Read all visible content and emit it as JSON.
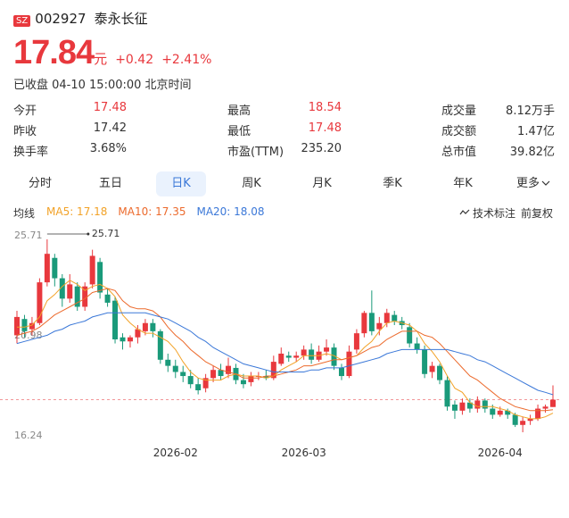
{
  "header": {
    "market": "SZ",
    "code": "002927",
    "name": "泰永长征",
    "price": "17.84",
    "unit": "元",
    "change": "+0.42",
    "change_pct": "+2.41%",
    "status": "已收盘 04-10 15:00:00 北京时间"
  },
  "stats": [
    [
      {
        "label": "今开",
        "value": "17.48",
        "color": "#e8383d"
      },
      {
        "label": "最高",
        "value": "18.54",
        "color": "#e8383d"
      },
      {
        "label": "成交量",
        "value": "8.12万手",
        "color": "#333333"
      }
    ],
    [
      {
        "label": "昨收",
        "value": "17.42",
        "color": "#333333"
      },
      {
        "label": "最低",
        "value": "17.48",
        "color": "#e8383d"
      },
      {
        "label": "成交额",
        "value": "1.47亿",
        "color": "#333333"
      }
    ],
    [
      {
        "label": "换手率",
        "value": "3.68%",
        "color": "#333333"
      },
      {
        "label": "市盈(TTM)",
        "value": "235.20",
        "color": "#333333"
      },
      {
        "label": "总市值",
        "value": "39.82亿",
        "color": "#333333"
      }
    ]
  ],
  "tabs": [
    "分时",
    "五日",
    "日K",
    "周K",
    "月K",
    "季K",
    "年K",
    "更多"
  ],
  "active_tab": 2,
  "legend": {
    "title": "均线",
    "tools": [
      "技术标注",
      "前复权"
    ]
  },
  "chart_data": {
    "type": "candlestick",
    "up_color": "#e8383d",
    "down_color": "#1a9a7a",
    "categories": [
      null,
      null,
      null,
      null,
      null,
      null,
      null,
      null,
      null,
      null,
      null,
      null,
      null,
      null,
      null,
      null,
      null,
      null,
      null,
      null,
      null,
      "2026-02",
      null,
      null,
      null,
      null,
      null,
      null,
      null,
      null,
      null,
      null,
      null,
      null,
      null,
      null,
      null,
      null,
      "2026-03",
      null,
      null,
      null,
      null,
      null,
      null,
      null,
      null,
      null,
      null,
      null,
      null,
      null,
      null,
      null,
      null,
      null,
      null,
      null,
      null,
      null,
      null,
      null,
      null,
      null,
      "2026-04",
      null,
      null,
      null,
      null,
      null,
      null,
      null
    ],
    "open": [
      21.0,
      21.8,
      21.3,
      21.6,
      23.6,
      24.8,
      23.8,
      22.8,
      23.4,
      22.4,
      23.5,
      24.6,
      23.0,
      22.7,
      20.9,
      20.7,
      20.9,
      21.2,
      21.6,
      21.2,
      19.8,
      19.5,
      19.2,
      19.0,
      18.6,
      18.4,
      18.9,
      19.3,
      19.1,
      19.4,
      18.8,
      18.7,
      19.0,
      19.0,
      18.9,
      19.6,
      20.0,
      19.9,
      20.0,
      20.3,
      19.8,
      20.2,
      20.4,
      19.4,
      19.0,
      20.3,
      21.1,
      22.1,
      21.3,
      21.6,
      22.0,
      21.7,
      21.4,
      20.6,
      20.3,
      19.2,
      19.5,
      18.8,
      17.6,
      17.3,
      17.7,
      17.4,
      17.8,
      17.4,
      17.1,
      17.3,
      17.1,
      16.6,
      16.8,
      16.9,
      17.4,
      17.48
    ],
    "close": [
      21.9,
      21.2,
      21.6,
      23.6,
      25.0,
      23.8,
      22.8,
      23.5,
      22.4,
      23.4,
      24.9,
      23.1,
      22.6,
      20.8,
      20.7,
      20.9,
      21.3,
      21.6,
      21.2,
      19.8,
      19.5,
      19.2,
      19.0,
      18.6,
      18.3,
      18.9,
      19.3,
      19.0,
      19.5,
      18.8,
      18.6,
      19.0,
      19.0,
      18.9,
      19.7,
      20.1,
      19.9,
      20.0,
      20.3,
      19.8,
      20.2,
      20.4,
      19.5,
      19.0,
      20.2,
      21.1,
      22.1,
      21.2,
      21.6,
      22.1,
      21.7,
      21.5,
      20.6,
      20.3,
      19.1,
      19.5,
      18.8,
      17.5,
      17.3,
      17.7,
      17.4,
      17.8,
      17.4,
      17.1,
      17.3,
      17.1,
      16.6,
      16.8,
      16.9,
      17.4,
      17.5,
      17.84
    ],
    "high": [
      22.2,
      22.0,
      21.9,
      23.8,
      25.71,
      25.0,
      24.0,
      24.0,
      23.6,
      23.6,
      25.2,
      24.8,
      23.3,
      22.9,
      21.1,
      21.0,
      21.5,
      21.8,
      21.8,
      21.3,
      20.1,
      19.8,
      19.5,
      19.3,
      18.9,
      19.1,
      19.5,
      19.6,
      19.9,
      19.6,
      19.1,
      19.2,
      19.2,
      19.3,
      20.0,
      20.4,
      20.2,
      20.2,
      20.5,
      20.6,
      20.5,
      20.8,
      20.6,
      19.6,
      20.5,
      21.3,
      22.2,
      23.2,
      21.9,
      22.3,
      22.2,
      21.9,
      21.6,
      20.9,
      20.5,
      19.7,
      19.6,
      19.0,
      17.8,
      17.9,
      17.9,
      18.0,
      17.9,
      17.6,
      17.5,
      17.4,
      17.2,
      17.0,
      17.1,
      17.6,
      17.6,
      18.54
    ],
    "low": [
      20.6,
      20.9,
      21.0,
      21.5,
      23.4,
      23.4,
      22.4,
      22.6,
      22.2,
      22.2,
      23.3,
      22.8,
      22.4,
      20.6,
      20.3,
      20.4,
      20.6,
      21.0,
      20.9,
      19.6,
      19.2,
      18.9,
      18.7,
      18.4,
      18.1,
      18.2,
      18.7,
      18.8,
      18.9,
      18.6,
      18.4,
      18.5,
      18.8,
      18.8,
      18.8,
      19.5,
      19.7,
      19.7,
      19.8,
      19.6,
      19.7,
      20.0,
      19.3,
      18.8,
      18.9,
      20.1,
      20.9,
      21.0,
      21.0,
      21.4,
      21.5,
      21.3,
      20.4,
      20.1,
      18.9,
      18.9,
      18.6,
      17.3,
      16.9,
      17.1,
      17.2,
      17.2,
      17.2,
      16.9,
      17.0,
      16.9,
      16.5,
      16.24,
      16.6,
      16.8,
      17.2,
      17.48
    ],
    "series": [
      {
        "name": "MA5",
        "legend_label": "MA5: 17.18",
        "color": "#f2a227",
        "values": [
          21.4,
          21.4,
          21.5,
          21.9,
          22.7,
          23.0,
          23.4,
          23.7,
          23.5,
          23.2,
          23.4,
          23.5,
          23.3,
          22.9,
          22.0,
          21.6,
          21.3,
          21.1,
          21.1,
          20.9,
          20.7,
          20.3,
          19.7,
          19.2,
          18.9,
          18.8,
          18.8,
          18.8,
          19.0,
          19.1,
          19.0,
          19.0,
          19.0,
          18.9,
          19.0,
          19.3,
          19.5,
          19.7,
          20.0,
          20.0,
          20.0,
          20.1,
          20.0,
          19.8,
          19.9,
          20.0,
          20.4,
          20.7,
          21.2,
          21.6,
          21.7,
          21.6,
          21.5,
          21.2,
          20.6,
          20.2,
          19.7,
          19.0,
          18.4,
          18.2,
          17.7,
          17.5,
          17.5,
          17.5,
          17.4,
          17.3,
          17.1,
          17.0,
          16.9,
          16.9,
          17.0,
          17.18
        ]
      },
      {
        "name": "MA10",
        "legend_label": "MA10: 17.35",
        "color": "#ec6a2c",
        "values": [
          21.0,
          21.1,
          21.2,
          21.4,
          21.7,
          22.0,
          22.2,
          22.4,
          22.6,
          22.8,
          23.1,
          23.2,
          23.3,
          23.2,
          22.7,
          22.4,
          22.3,
          22.3,
          22.2,
          21.9,
          21.4,
          21.0,
          20.7,
          20.3,
          20.0,
          19.7,
          19.5,
          19.3,
          19.2,
          19.1,
          18.9,
          18.9,
          18.9,
          19.0,
          19.0,
          19.1,
          19.2,
          19.3,
          19.5,
          19.5,
          19.6,
          19.7,
          19.8,
          19.8,
          19.9,
          20.0,
          20.2,
          20.4,
          20.5,
          20.8,
          21.0,
          21.2,
          21.2,
          21.2,
          21.0,
          20.9,
          20.6,
          20.2,
          19.8,
          19.4,
          19.0,
          18.8,
          18.5,
          18.2,
          17.9,
          17.7,
          17.5,
          17.4,
          17.3,
          17.3,
          17.3,
          17.35
        ]
      },
      {
        "name": "MA20",
        "legend_label": "MA20: 18.08",
        "color": "#3b78d8",
        "values": [
          20.6,
          20.7,
          20.8,
          20.9,
          21.0,
          21.2,
          21.3,
          21.5,
          21.6,
          21.7,
          21.9,
          22.0,
          22.1,
          22.1,
          22.1,
          22.1,
          22.1,
          22.1,
          22.0,
          21.9,
          21.8,
          21.6,
          21.4,
          21.2,
          20.9,
          20.7,
          20.4,
          20.2,
          20.0,
          19.8,
          19.6,
          19.5,
          19.4,
          19.3,
          19.2,
          19.2,
          19.2,
          19.2,
          19.2,
          19.3,
          19.3,
          19.4,
          19.4,
          19.4,
          19.5,
          19.6,
          19.7,
          19.8,
          19.9,
          20.1,
          20.2,
          20.3,
          20.3,
          20.3,
          20.3,
          20.3,
          20.3,
          20.3,
          20.2,
          20.1,
          20.0,
          19.8,
          19.7,
          19.5,
          19.3,
          19.1,
          18.9,
          18.7,
          18.5,
          18.3,
          18.2,
          18.08
        ]
      }
    ],
    "ylim": [
      16.24,
      25.71
    ],
    "yticks": [
      25.71,
      20.98,
      16.24
    ],
    "max_label": 25.71,
    "last_price": 17.84,
    "grid": false
  }
}
